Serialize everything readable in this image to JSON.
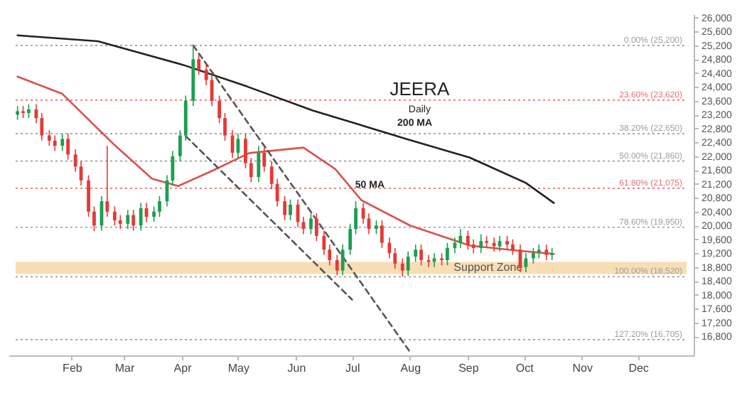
{
  "chart_data": {
    "type": "candlestick",
    "title": "JEERA",
    "subtitle": "Daily",
    "x": [
      "--01-03",
      "--01-06",
      "--01-09",
      "--01-13",
      "--01-16",
      "--01-20",
      "--01-23",
      "--01-27",
      "--01-30",
      "--02-03",
      "--02-06",
      "--02-10",
      "--02-13",
      "--02-17",
      "--02-20",
      "--02-24",
      "--02-27",
      "--03-03",
      "--03-06",
      "--03-10",
      "--03-13",
      "--03-17",
      "--03-20",
      "--03-24",
      "--03-27",
      "--03-31",
      "--04-03",
      "--04-07",
      "--04-10",
      "--04-14",
      "--04-17",
      "--04-21",
      "--04-24",
      "--04-28",
      "--05-01",
      "--05-05",
      "--05-08",
      "--05-12",
      "--05-15",
      "--05-19",
      "--05-22",
      "--05-26",
      "--05-29",
      "--06-02",
      "--06-05",
      "--06-09",
      "--06-12",
      "--06-16",
      "--06-19",
      "--06-23",
      "--06-26",
      "--06-30",
      "--07-03",
      "--07-07",
      "--07-10",
      "--07-14",
      "--07-17",
      "--07-21",
      "--07-24",
      "--07-28",
      "--07-31",
      "--08-04",
      "--08-07",
      "--08-11",
      "--08-14",
      "--08-18",
      "--08-21",
      "--08-25",
      "--08-28",
      "--09-01",
      "--09-04",
      "--09-08",
      "--09-11",
      "--09-15",
      "--09-18",
      "--09-22",
      "--09-25",
      "--09-29",
      "--10-02",
      "--10-06",
      "--10-09",
      "--10-13",
      "--10-16"
    ],
    "ohlc": [
      [
        23200,
        23450,
        23050,
        23300
      ],
      [
        23300,
        23450,
        23100,
        23250
      ],
      [
        23250,
        23500,
        23100,
        23350
      ],
      [
        23350,
        23500,
        22950,
        23100
      ],
      [
        23100,
        23250,
        22450,
        22600
      ],
      [
        22600,
        22750,
        22300,
        22450
      ],
      [
        22450,
        22600,
        22150,
        22300
      ],
      [
        22300,
        22650,
        22150,
        22500
      ],
      [
        22500,
        22650,
        21900,
        22050
      ],
      [
        22050,
        22200,
        21550,
        21700
      ],
      [
        21700,
        21850,
        21150,
        21300
      ],
      [
        21300,
        21450,
        20250,
        20400
      ],
      [
        20400,
        20550,
        19830,
        20000
      ],
      [
        20000,
        20850,
        19850,
        20700
      ],
      [
        20700,
        22300,
        20250,
        20400
      ],
      [
        20400,
        20550,
        20000,
        20150
      ],
      [
        20150,
        20300,
        19900,
        20050
      ],
      [
        20050,
        20450,
        19900,
        20300
      ],
      [
        20300,
        20450,
        19850,
        20000
      ],
      [
        20000,
        20650,
        19850,
        20500
      ],
      [
        20500,
        20650,
        20100,
        20250
      ],
      [
        20250,
        20550,
        20100,
        20400
      ],
      [
        20400,
        20850,
        20250,
        20700
      ],
      [
        20700,
        21450,
        20550,
        21300
      ],
      [
        21300,
        22150,
        21150,
        22000
      ],
      [
        22000,
        22750,
        21850,
        22600
      ],
      [
        22600,
        23750,
        22450,
        23600
      ],
      [
        23600,
        25200,
        23450,
        24800
      ],
      [
        24800,
        24950,
        24350,
        24500
      ],
      [
        24500,
        24650,
        24050,
        24200
      ],
      [
        24200,
        24350,
        23450,
        23600
      ],
      [
        23600,
        23750,
        22950,
        23100
      ],
      [
        23100,
        23250,
        22450,
        22600
      ],
      [
        22600,
        22750,
        21950,
        22100
      ],
      [
        22100,
        22650,
        21950,
        22500
      ],
      [
        22500,
        22650,
        21650,
        21800
      ],
      [
        21800,
        21950,
        21250,
        21400
      ],
      [
        21400,
        22300,
        21250,
        22100
      ],
      [
        22100,
        22250,
        21550,
        21700
      ],
      [
        21700,
        21850,
        21050,
        21200
      ],
      [
        21200,
        21350,
        20550,
        20700
      ],
      [
        20700,
        20850,
        20150,
        20300
      ],
      [
        20300,
        20750,
        20150,
        20600
      ],
      [
        20600,
        20750,
        19950,
        20100
      ],
      [
        20100,
        20250,
        19750,
        19900
      ],
      [
        19900,
        20350,
        19750,
        20200
      ],
      [
        20200,
        20350,
        19550,
        19700
      ],
      [
        19700,
        19850,
        19150,
        19300
      ],
      [
        19300,
        19450,
        18850,
        19000
      ],
      [
        19000,
        19150,
        18560,
        18700
      ],
      [
        18700,
        19450,
        18560,
        19300
      ],
      [
        19300,
        20050,
        19150,
        19900
      ],
      [
        19900,
        20700,
        19750,
        20500
      ],
      [
        20500,
        20650,
        20050,
        20200
      ],
      [
        20200,
        20350,
        19750,
        19900
      ],
      [
        19900,
        20150,
        19750,
        20000
      ],
      [
        20000,
        20150,
        19350,
        19500
      ],
      [
        19500,
        19650,
        19050,
        19200
      ],
      [
        19200,
        19350,
        18750,
        18900
      ],
      [
        18900,
        19050,
        18520,
        18700
      ],
      [
        18700,
        19250,
        18550,
        19100
      ],
      [
        19100,
        19450,
        18950,
        19300
      ],
      [
        19300,
        19450,
        18850,
        19000
      ],
      [
        19000,
        19150,
        18800,
        18950
      ],
      [
        18950,
        19200,
        18800,
        19050
      ],
      [
        19050,
        19200,
        18850,
        19000
      ],
      [
        19000,
        19500,
        18850,
        19350
      ],
      [
        19350,
        19650,
        19200,
        19500
      ],
      [
        19500,
        19900,
        19350,
        19700
      ],
      [
        19700,
        19850,
        19300,
        19450
      ],
      [
        19450,
        19600,
        19200,
        19350
      ],
      [
        19350,
        19750,
        19200,
        19550
      ],
      [
        19550,
        19700,
        19350,
        19500
      ],
      [
        19500,
        19650,
        19250,
        19400
      ],
      [
        19400,
        19700,
        19250,
        19550
      ],
      [
        19550,
        19700,
        19300,
        19450
      ],
      [
        19450,
        19600,
        19150,
        19300
      ],
      [
        19300,
        19450,
        18650,
        18800
      ],
      [
        18800,
        19200,
        18650,
        19050
      ],
      [
        19050,
        19350,
        18900,
        19200
      ],
      [
        19200,
        19450,
        19050,
        19300
      ],
      [
        19300,
        19450,
        19000,
        19150
      ],
      [
        19150,
        19350,
        19000,
        19200
      ]
    ],
    "colors": [
      "#1e9e50",
      "#e53935",
      "#1e9e50",
      "#e53935",
      "#e53935",
      "#e53935",
      "#e53935",
      "#1e9e50",
      "#e53935",
      "#e53935",
      "#e53935",
      "#e53935",
      "#e53935",
      "#1e9e50",
      "#e53935",
      "#e53935",
      "#e53935",
      "#1e9e50",
      "#e53935",
      "#1e9e50",
      "#e53935",
      "#1e9e50",
      "#1e9e50",
      "#1e9e50",
      "#1e9e50",
      "#1e9e50",
      "#1e9e50",
      "#1e9e50",
      "#e53935",
      "#e53935",
      "#e53935",
      "#e53935",
      "#e53935",
      "#e53935",
      "#1e9e50",
      "#e53935",
      "#e53935",
      "#1e9e50",
      "#e53935",
      "#e53935",
      "#e53935",
      "#e53935",
      "#1e9e50",
      "#e53935",
      "#e53935",
      "#1e9e50",
      "#e53935",
      "#e53935",
      "#e53935",
      "#e53935",
      "#1e9e50",
      "#1e9e50",
      "#1e9e50",
      "#e53935",
      "#e53935",
      "#1e9e50",
      "#e53935",
      "#e53935",
      "#e53935",
      "#e53935",
      "#1e9e50",
      "#1e9e50",
      "#e53935",
      "#e53935",
      "#1e9e50",
      "#e53935",
      "#1e9e50",
      "#1e9e50",
      "#1e9e50",
      "#e53935",
      "#e53935",
      "#1e9e50",
      "#e53935",
      "#e53935",
      "#1e9e50",
      "#e53935",
      "#e53935",
      "#e53935",
      "#1e9e50",
      "#1e9e50",
      "#1e9e50",
      "#e53935",
      "#1e9e50"
    ],
    "series": [
      {
        "type": "line",
        "name": "50 MA",
        "color": "#d9534f",
        "x": [
          "--01-03",
          "--01-27",
          "--02-23",
          "--03-16",
          "--03-30",
          "--04-16",
          "--05-07",
          "--06-05",
          "--06-22",
          "--07-06",
          "--08-01",
          "--09-02",
          "--09-30",
          "--10-17"
        ],
        "values": [
          24300,
          23800,
          22370,
          21350,
          21140,
          21550,
          22090,
          22250,
          21630,
          20730,
          20000,
          19420,
          19260,
          19180
        ]
      },
      {
        "type": "line",
        "name": "200 MA",
        "color": "#222222",
        "x": [
          "--01-03",
          "--02-15",
          "--04-02",
          "--05-06",
          "--06-10",
          "--07-30",
          "--09-02",
          "--10-02",
          "--10-17"
        ],
        "values": [
          25490,
          25320,
          24630,
          24010,
          23320,
          22500,
          21960,
          21230,
          20650
        ]
      },
      {
        "type": "line",
        "color": "#555555",
        "line_style": "dashed",
        "x": [
          "--04-07",
          "--08-01"
        ],
        "values": [
          25200,
          16350
        ]
      },
      {
        "type": "line",
        "color": "#555555",
        "line_style": "dashed",
        "x": [
          "--04-03",
          "--07-01"
        ],
        "values": [
          22580,
          17860
        ]
      }
    ],
    "xlim": [
      "--01-02",
      "--12-27"
    ],
    "xticks": [
      {
        "value": "--02-01",
        "label": "Feb"
      },
      {
        "value": "--03-01",
        "label": "Mar"
      },
      {
        "value": "--04-01",
        "label": "Apr"
      },
      {
        "value": "--05-01",
        "label": "May"
      },
      {
        "value": "--06-01",
        "label": "Jun"
      },
      {
        "value": "--07-01",
        "label": "Jul"
      },
      {
        "value": "--08-01",
        "label": "Aug"
      },
      {
        "value": "--09-01",
        "label": "Sep"
      },
      {
        "value": "--10-01",
        "label": "Oct"
      },
      {
        "value": "--11-01",
        "label": "Nov"
      },
      {
        "value": "--12-01",
        "label": "Dec"
      }
    ],
    "ylim": [
      16250,
      26100
    ],
    "yticks": [
      {
        "value": 16800,
        "label": "16,800"
      },
      {
        "value": 17200,
        "label": "17,200"
      },
      {
        "value": 17600,
        "label": "17,600"
      },
      {
        "value": 18000,
        "label": "18,000"
      },
      {
        "value": 18400,
        "label": "18,400"
      },
      {
        "value": 18800,
        "label": "18,800"
      },
      {
        "value": 19200,
        "label": "19,200"
      },
      {
        "value": 19600,
        "label": "19,600"
      },
      {
        "value": 20000,
        "label": "20,000"
      },
      {
        "value": 20400,
        "label": "20,400"
      },
      {
        "value": 20800,
        "label": "20,800"
      },
      {
        "value": 21200,
        "label": "21,200"
      },
      {
        "value": 21600,
        "label": "21,600"
      },
      {
        "value": 22000,
        "label": "22,000"
      },
      {
        "value": 22400,
        "label": "22,400"
      },
      {
        "value": 22800,
        "label": "22,800"
      },
      {
        "value": 23200,
        "label": "23,200"
      },
      {
        "value": 23600,
        "label": "23,600"
      },
      {
        "value": 24000,
        "label": "24,000"
      },
      {
        "value": 24400,
        "label": "24,400"
      },
      {
        "value": 24800,
        "label": "24,800"
      },
      {
        "value": 25200,
        "label": "25,200"
      },
      {
        "value": 25600,
        "label": "25,600"
      },
      {
        "value": 26000,
        "label": "26,000"
      }
    ],
    "ref_lines": [
      {
        "axis": "y",
        "value": 25200,
        "label": "0.00% (25,200)",
        "color": "#9e9e9e",
        "line_style": "dotted"
      },
      {
        "axis": "y",
        "value": 23620,
        "label": "23.60% (23,620)",
        "color": "#e57373",
        "line_style": "dotted"
      },
      {
        "axis": "y",
        "value": 22650,
        "label": "38.20% (22,650)",
        "color": "#9e9e9e",
        "line_style": "dotted"
      },
      {
        "axis": "y",
        "value": 21860,
        "label": "50.00% (21,860)",
        "color": "#9e9e9e",
        "line_style": "dotted"
      },
      {
        "axis": "y",
        "value": 21075,
        "label": "61.80% (21,075)",
        "color": "#e57373",
        "line_style": "dotted"
      },
      {
        "axis": "y",
        "value": 19950,
        "label": "78.60% (19,950)",
        "color": "#9e9e9e",
        "line_style": "dotted"
      },
      {
        "axis": "y",
        "value": 18520,
        "label": "100.00% (18,520)",
        "color": "#9e9e9e",
        "line_style": "dotted"
      },
      {
        "axis": "y",
        "value": 16705,
        "label": "127.20% (16,705)",
        "color": "#9e9e9e",
        "line_style": "dotted"
      }
    ],
    "bands": [
      {
        "axis": "y",
        "from": 18600,
        "to": 18950,
        "label": "Support Zone",
        "color": "#f7d29b"
      }
    ],
    "grid": false
  }
}
